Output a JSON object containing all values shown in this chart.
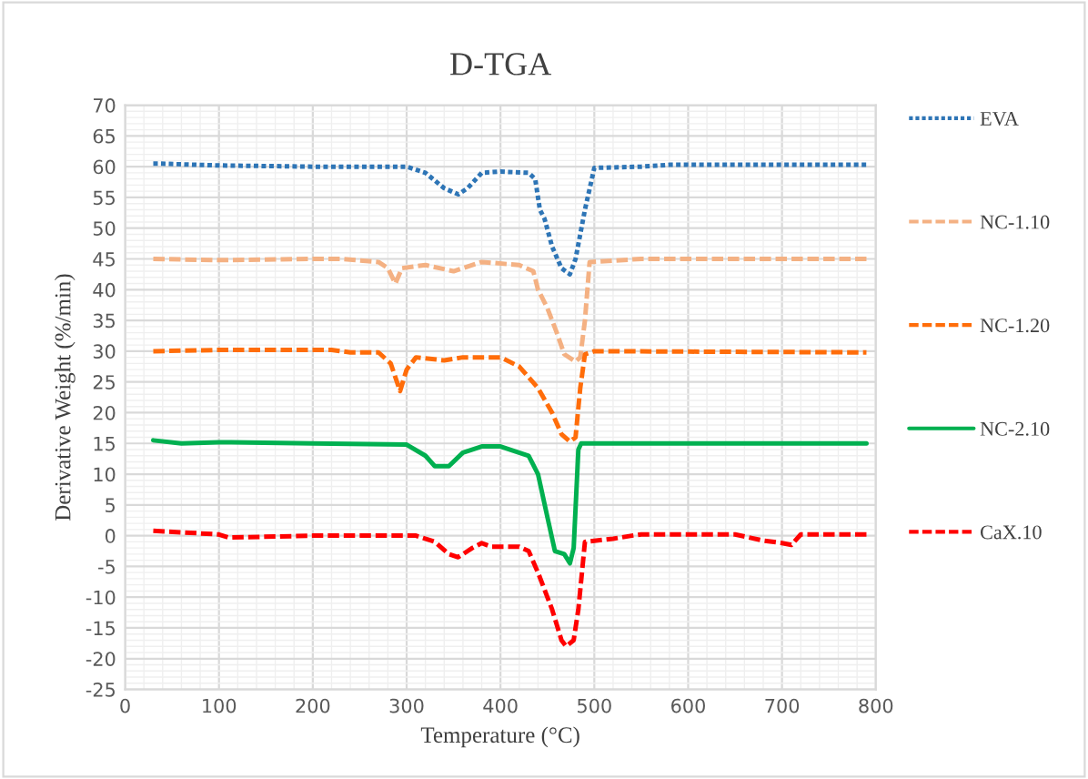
{
  "chart_data": {
    "type": "line",
    "title": "D-TGA",
    "xlabel": "Temperature (°C)",
    "ylabel": "Derivative Weight (%/min)",
    "xlim": [
      0,
      800
    ],
    "xticks": [
      0,
      100,
      200,
      300,
      400,
      500,
      600,
      700,
      800
    ],
    "ylim": [
      -25,
      70
    ],
    "yticks": [
      -25,
      -20,
      -15,
      -10,
      -5,
      0,
      5,
      10,
      15,
      20,
      25,
      30,
      35,
      40,
      45,
      50,
      55,
      60,
      65,
      70
    ],
    "grid": true,
    "legend": "right",
    "marker": "none",
    "series": [
      {
        "name": "EVA",
        "color": "#2e75b6",
        "line_style": "dotted",
        "x": [
          30,
          35,
          100,
          200,
          300,
          320,
          340,
          355,
          365,
          380,
          400,
          430,
          437,
          442,
          447,
          455,
          465,
          474,
          480,
          490,
          500,
          550,
          580,
          700,
          790
        ],
        "values": [
          60.5,
          60.5,
          60.2,
          60,
          60,
          59,
          56.5,
          55.5,
          56.5,
          59,
          59.2,
          59,
          58,
          53,
          51.5,
          47,
          43.5,
          42.5,
          45,
          53,
          59.8,
          60,
          60.3,
          60.3,
          60.3
        ]
      },
      {
        "name": "NC-1.10",
        "color": "#f4b183",
        "line_style": "dashed",
        "x": [
          30,
          100,
          200,
          230,
          270,
          280,
          288,
          295,
          320,
          350,
          380,
          420,
          435,
          440,
          450,
          460,
          468,
          480,
          485,
          490,
          495,
          550,
          700,
          790
        ],
        "values": [
          45,
          44.8,
          45,
          45,
          44.5,
          43.5,
          41,
          43.5,
          44,
          43,
          44.5,
          44,
          43,
          40,
          37,
          33,
          29.5,
          28.3,
          29,
          35,
          44.5,
          45,
          45,
          45
        ]
      },
      {
        "name": "NC-1.20",
        "color": "#ff6d0a",
        "line_style": "dashed",
        "x": [
          30,
          100,
          220,
          240,
          270,
          283,
          293,
          300,
          310,
          340,
          360,
          400,
          420,
          440,
          455,
          465,
          474,
          480,
          485,
          490,
          500,
          790
        ],
        "values": [
          30,
          30.2,
          30.2,
          29.8,
          29.8,
          28,
          23.5,
          27,
          29,
          28.5,
          29,
          29,
          27.5,
          24,
          20,
          16.5,
          15.3,
          16,
          24,
          29.5,
          30,
          29.8
        ]
      },
      {
        "name": "NC-2.10",
        "color": "#00b050",
        "line_style": "solid",
        "x": [
          30,
          60,
          100,
          200,
          300,
          320,
          330,
          345,
          360,
          380,
          400,
          430,
          440,
          450,
          458,
          468,
          474,
          478,
          483,
          486,
          790
        ],
        "values": [
          15.5,
          15,
          15.2,
          15,
          14.8,
          13,
          11.3,
          11.3,
          13.5,
          14.5,
          14.5,
          13,
          10,
          3,
          -2.5,
          -3,
          -4.5,
          -2,
          14,
          15,
          15
        ]
      },
      {
        "name": "CaX.10",
        "color": "#ff0000",
        "line_style": "dashed",
        "x": [
          30,
          100,
          110,
          200,
          310,
          330,
          345,
          355,
          370,
          380,
          390,
          420,
          430,
          440,
          455,
          465,
          470,
          478,
          483,
          490,
          520,
          540,
          550,
          650,
          680,
          700,
          710,
          720,
          790
        ],
        "values": [
          0.8,
          0.2,
          -0.3,
          0,
          0,
          -1,
          -3,
          -3.5,
          -2,
          -1.2,
          -1.8,
          -1.8,
          -2.5,
          -6,
          -12,
          -17,
          -18,
          -17,
          -12,
          -1,
          -0.5,
          0,
          0.2,
          0.2,
          -0.8,
          -1.2,
          -1.5,
          0.2,
          0.2
        ]
      }
    ]
  }
}
